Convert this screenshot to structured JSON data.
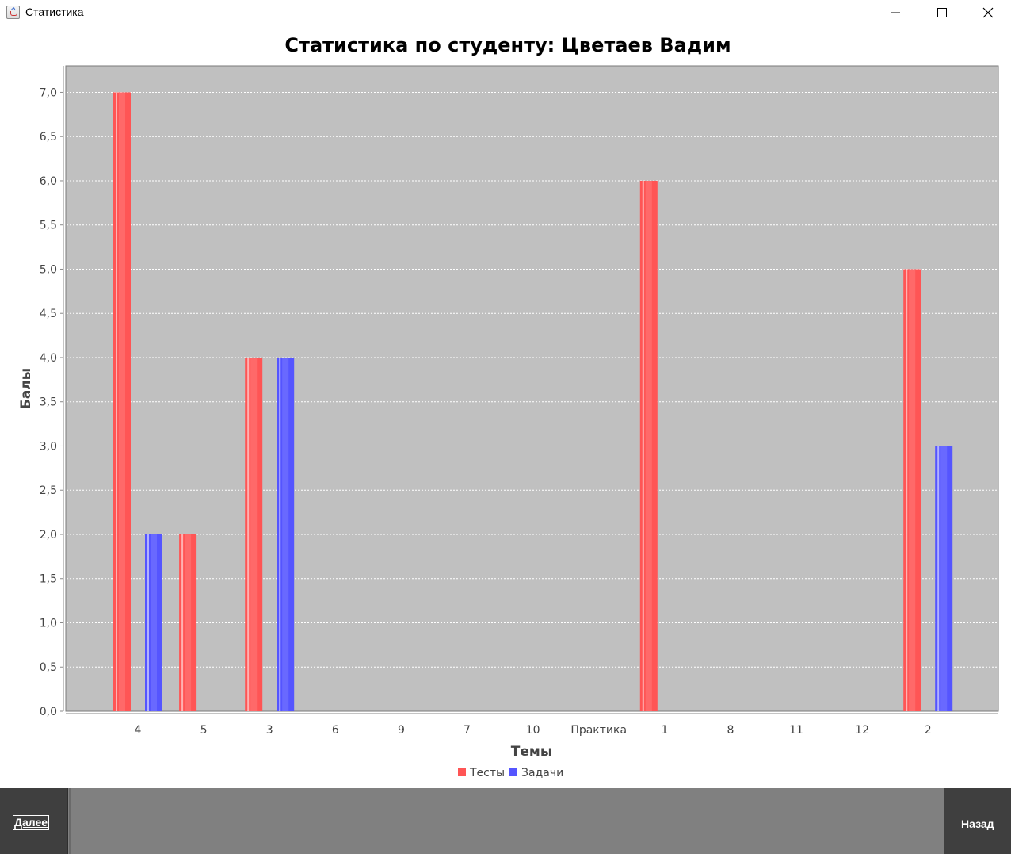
{
  "window": {
    "title": "Статистика"
  },
  "buttons": {
    "next": "Далее",
    "back": "Назад"
  },
  "colors": {
    "plot_background": "#c0c0c0",
    "series_tests": "#ff5555",
    "series_tasks": "#5555ff",
    "bottom_panel": "#808080",
    "button_dark": "#3f3f3f"
  },
  "chart_data": {
    "type": "bar",
    "title": "Статистика по студенту: Цветаев Вадим",
    "xlabel": "Темы",
    "ylabel": "Балы",
    "ylim": [
      0,
      7.3
    ],
    "y_ticks": [
      "0,0",
      "0,5",
      "1,0",
      "1,5",
      "2,0",
      "2,5",
      "3,0",
      "3,5",
      "4,0",
      "4,5",
      "5,0",
      "5,5",
      "6,0",
      "6,5",
      "7,0"
    ],
    "grid": true,
    "legend_position": "bottom",
    "categories": [
      "4",
      "5",
      "3",
      "6",
      "9",
      "7",
      "10",
      "Практика",
      "1",
      "8",
      "11",
      "12",
      "2"
    ],
    "series": [
      {
        "name": "Тесты",
        "color": "#ff5555",
        "values": [
          7,
          2,
          4,
          0,
          0,
          0,
          0,
          0,
          6,
          0,
          0,
          0,
          5
        ]
      },
      {
        "name": "Задачи",
        "color": "#5555ff",
        "values": [
          2,
          0,
          4,
          0,
          0,
          0,
          0,
          0,
          0,
          0,
          0,
          0,
          3
        ]
      }
    ]
  }
}
